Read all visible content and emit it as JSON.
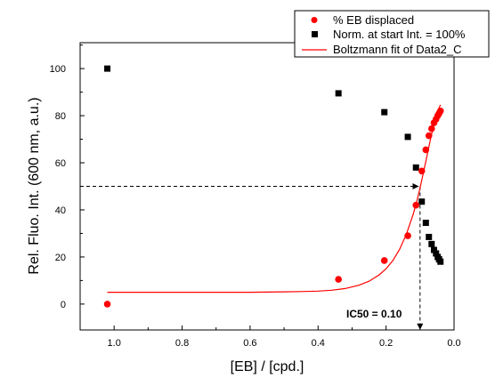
{
  "chart_data": {
    "type": "scatter",
    "xlabel": "[EB] / [cpd.]",
    "ylabel": "Rel. Fluo. Int. (600 nm, a.u.)",
    "xlim": [
      1.1,
      0.0
    ],
    "ylim": [
      -11,
      111
    ],
    "x_reversed": true,
    "grid": false,
    "legend_position": "top-right",
    "x_ticks": [
      1.0,
      0.8,
      0.6,
      0.4,
      0.2,
      0.0
    ],
    "x_tick_labels": [
      "1.0",
      "0.8",
      "0.6",
      "0.4",
      "0.2",
      "0.0"
    ],
    "y_ticks": [
      0,
      20,
      40,
      60,
      80,
      100
    ],
    "y_tick_labels": [
      "0",
      "20",
      "40",
      "60",
      "80",
      "100"
    ],
    "series": [
      {
        "name": "% EB displaced",
        "kind": "scatter",
        "marker": "circle",
        "color": "#ff0000",
        "x": [
          1.02,
          0.34,
          0.205,
          0.136,
          0.112,
          0.095,
          0.083,
          0.074,
          0.066,
          0.059,
          0.053,
          0.048,
          0.044,
          0.04
        ],
        "y": [
          0.0,
          10.5,
          18.5,
          29.0,
          42.0,
          56.5,
          65.5,
          71.5,
          74.5,
          77.0,
          78.5,
          80.0,
          81.0,
          82.0
        ]
      },
      {
        "name": "Norm. at start Int. = 100%",
        "kind": "scatter",
        "marker": "square",
        "color": "#000000",
        "x": [
          1.02,
          0.34,
          0.205,
          0.136,
          0.112,
          0.095,
          0.083,
          0.074,
          0.066,
          0.059,
          0.053,
          0.048,
          0.044,
          0.04
        ],
        "y": [
          100.0,
          89.5,
          81.5,
          71.0,
          58.0,
          43.5,
          34.5,
          28.5,
          25.5,
          23.0,
          21.5,
          20.0,
          19.0,
          18.0
        ]
      },
      {
        "name": "Boltzmann fit of Data2_C",
        "kind": "line",
        "color": "#ff0000",
        "x": [
          1.02,
          0.9,
          0.8,
          0.7,
          0.6,
          0.55,
          0.5,
          0.45,
          0.4,
          0.36,
          0.32,
          0.28,
          0.25,
          0.22,
          0.2,
          0.18,
          0.16,
          0.14,
          0.12,
          0.11,
          0.1,
          0.09,
          0.08,
          0.07,
          0.06,
          0.05,
          0.04
        ],
        "y": [
          5.0,
          5.0,
          5.0,
          5.0,
          5.0,
          5.1,
          5.2,
          5.3,
          5.5,
          5.9,
          6.6,
          8.0,
          9.7,
          12.4,
          15.0,
          18.5,
          23.3,
          29.7,
          38.2,
          43.4,
          49.3,
          55.8,
          62.7,
          69.6,
          76.0,
          81.3,
          84.6
        ]
      }
    ],
    "annotations": [
      {
        "text": "IC50 = 0.10",
        "x": 0.1,
        "y": -5
      }
    ],
    "reference_lines": {
      "horizontal": {
        "y": 50,
        "x_from": 1.1,
        "x_to": 0.1,
        "style": "dashed",
        "arrow": "end"
      },
      "vertical": {
        "x": 0.1,
        "y_from": 50,
        "y_to": -11,
        "style": "dashed",
        "arrow": "end"
      }
    }
  }
}
